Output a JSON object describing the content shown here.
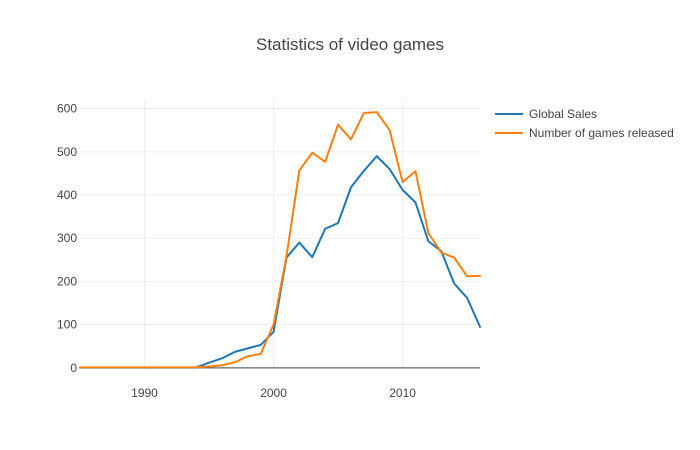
{
  "chart_data": {
    "type": "line",
    "title": "Statistics of video games",
    "xlabel": "",
    "ylabel": "",
    "xlim": [
      1985,
      2016
    ],
    "ylim": [
      -5,
      620
    ],
    "x_ticks": [
      1990,
      2000,
      2010
    ],
    "y_ticks": [
      0,
      100,
      200,
      300,
      400,
      500,
      600
    ],
    "grid": true,
    "legend_position": "top-right",
    "x": [
      1985,
      1986,
      1987,
      1988,
      1989,
      1990,
      1991,
      1992,
      1993,
      1994,
      1995,
      1996,
      1997,
      1998,
      1999,
      2000,
      2001,
      2002,
      2003,
      2004,
      2005,
      2006,
      2007,
      2008,
      2009,
      2010,
      2011,
      2012,
      2013,
      2014,
      2015,
      2016
    ],
    "series": [
      {
        "name": "Global Sales",
        "color": "#1f77b4",
        "values": [
          0.5,
          0.5,
          0.5,
          0.5,
          0.5,
          0.5,
          0.5,
          0.5,
          0.5,
          0.5,
          12,
          22,
          37,
          45,
          53,
          83,
          255,
          290,
          256,
          322,
          335,
          418,
          456,
          490,
          460,
          412,
          383,
          293,
          270,
          195,
          162,
          95
        ]
      },
      {
        "name": "Number of games released",
        "color": "#ff7f0e",
        "values": [
          1,
          1,
          1,
          1,
          1,
          1,
          1,
          1,
          1,
          1,
          3,
          6,
          13,
          27,
          32,
          100,
          258,
          457,
          498,
          477,
          563,
          529,
          590,
          592,
          550,
          430,
          455,
          312,
          267,
          255,
          212,
          213
        ]
      }
    ]
  }
}
